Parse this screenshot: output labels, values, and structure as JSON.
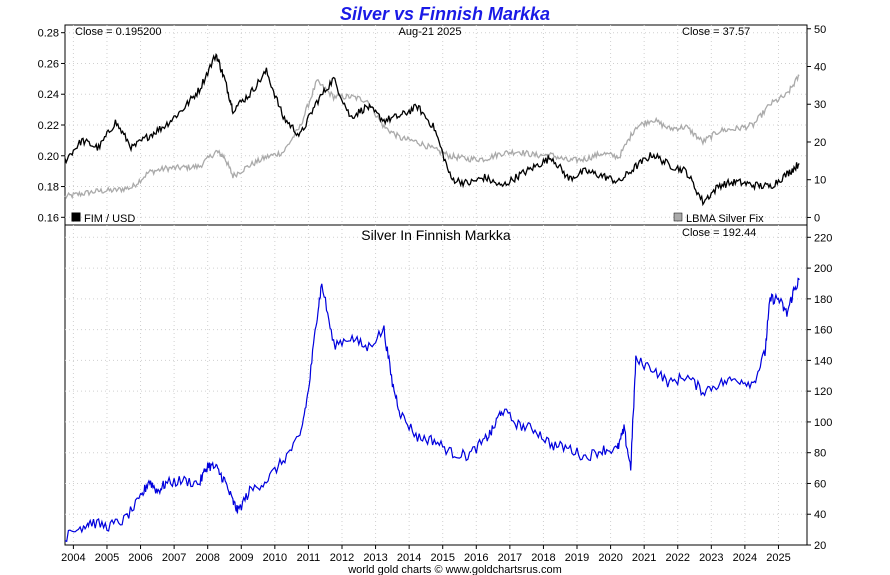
{
  "chart_data": [
    {
      "type": "line",
      "title": "Silver vs Finnish Markka",
      "date_label": "Aug-21  2025",
      "left_close_label": "Close = 0.195200",
      "right_close_label": "Close = 37.57",
      "left_axis": {
        "ylim": [
          0.155,
          0.285
        ],
        "ticks": [
          0.16,
          0.18,
          0.2,
          0.22,
          0.24,
          0.26,
          0.28
        ],
        "tick_labels": [
          "0.16",
          "0.18",
          "0.20",
          "0.22",
          "0.24",
          "0.26",
          "0.28"
        ]
      },
      "right_axis": {
        "ylim": [
          -2,
          51
        ],
        "ticks": [
          0,
          10,
          20,
          30,
          40,
          50
        ],
        "tick_labels": [
          "0",
          "10",
          "20",
          "30",
          "40",
          "50"
        ]
      },
      "x": [
        2003.75,
        2004.25,
        2004.75,
        2005.25,
        2005.75,
        2006.25,
        2006.75,
        2007.25,
        2007.75,
        2008.25,
        2008.5,
        2008.75,
        2009.25,
        2009.75,
        2010.25,
        2010.75,
        2011.25,
        2011.75,
        2012.25,
        2012.75,
        2013.25,
        2013.75,
        2014.25,
        2014.75,
        2015.25,
        2015.75,
        2016.25,
        2016.75,
        2017.25,
        2017.75,
        2018.25,
        2018.75,
        2019.25,
        2019.75,
        2020.25,
        2020.75,
        2021.25,
        2021.75,
        2022.25,
        2022.75,
        2023.25,
        2023.75,
        2024.25,
        2024.75,
        2025.25,
        2025.62
      ],
      "series": [
        {
          "name": "FIM / USD",
          "axis": "left",
          "color": "#000000",
          "values": [
            0.197,
            0.21,
            0.205,
            0.222,
            0.205,
            0.213,
            0.22,
            0.23,
            0.243,
            0.266,
            0.25,
            0.23,
            0.24,
            0.255,
            0.225,
            0.213,
            0.235,
            0.25,
            0.225,
            0.232,
            0.223,
            0.226,
            0.232,
            0.218,
            0.185,
            0.182,
            0.186,
            0.18,
            0.187,
            0.193,
            0.199,
            0.185,
            0.19,
            0.187,
            0.183,
            0.193,
            0.201,
            0.194,
            0.19,
            0.17,
            0.181,
            0.183,
            0.181,
            0.18,
            0.188,
            0.195
          ]
        },
        {
          "name": "LBMA Silver Fix",
          "axis": "right",
          "color": "#aaaaaa",
          "values": [
            5.5,
            6.3,
            7.0,
            7.2,
            8.0,
            12.0,
            13.0,
            13.2,
            13.5,
            17.5,
            16.0,
            11.0,
            13.8,
            16.0,
            17.3,
            24.0,
            36.0,
            32.0,
            32.0,
            31.0,
            24.0,
            21.0,
            20.0,
            18.0,
            16.2,
            15.5,
            15.5,
            17.0,
            17.5,
            16.5,
            16.5,
            15.0,
            15.5,
            17.0,
            16.0,
            24.0,
            26.0,
            23.5,
            24.0,
            20.0,
            23.0,
            23.5,
            24.5,
            30.0,
            32.5,
            37.6
          ]
        }
      ],
      "legend": "bottom"
    },
    {
      "type": "line",
      "title": "Silver In Finnish Markka",
      "close_label": "Close = 192.44",
      "y_axis": {
        "ylim": [
          20,
          228
        ],
        "ticks": [
          20,
          40,
          60,
          80,
          100,
          120,
          140,
          160,
          180,
          200,
          220
        ],
        "tick_labels": [
          "20",
          "40",
          "60",
          "80",
          "100",
          "120",
          "140",
          "160",
          "180",
          "200",
          "220"
        ]
      },
      "x": [
        2003.75,
        2004.25,
        2004.5,
        2005.0,
        2005.5,
        2006.0,
        2006.25,
        2006.5,
        2006.75,
        2007.25,
        2007.75,
        2008.0,
        2008.25,
        2008.5,
        2008.75,
        2008.9,
        2009.25,
        2009.75,
        2010.25,
        2010.75,
        2011.0,
        2011.25,
        2011.4,
        2011.75,
        2012.25,
        2012.75,
        2013.25,
        2013.5,
        2013.75,
        2014.25,
        2014.75,
        2015.25,
        2015.75,
        2016.25,
        2016.5,
        2016.75,
        2017.25,
        2017.75,
        2018.25,
        2018.75,
        2019.25,
        2019.75,
        2020.2,
        2020.4,
        2020.6,
        2020.75,
        2021.25,
        2021.75,
        2022.25,
        2022.75,
        2023.25,
        2023.75,
        2024.25,
        2024.6,
        2024.75,
        2025.0,
        2025.25,
        2025.45,
        2025.62
      ],
      "series": [
        {
          "name": "",
          "color": "#0000dd",
          "values": [
            25,
            32,
            35,
            32,
            36,
            50,
            62,
            55,
            60,
            62,
            60,
            72,
            70,
            62,
            48,
            42,
            55,
            62,
            75,
            90,
            120,
            168,
            190,
            150,
            155,
            148,
            160,
            125,
            105,
            90,
            88,
            80,
            78,
            88,
            95,
            108,
            98,
            95,
            85,
            83,
            77,
            82,
            82,
            95,
            70,
            140,
            135,
            125,
            130,
            120,
            125,
            128,
            125,
            145,
            180,
            180,
            170,
            185,
            192.4
          ]
        }
      ]
    }
  ],
  "x_axis": {
    "xlim": [
      2003.75,
      2025.85
    ],
    "tick_labels": [
      "2004",
      "2005",
      "2006",
      "2007",
      "2008",
      "2009",
      "2010",
      "2011",
      "2012",
      "2013",
      "2014",
      "2015",
      "2016",
      "2017",
      "2018",
      "2019",
      "2020",
      "2021",
      "2022",
      "2023",
      "2024",
      "2025"
    ]
  },
  "footer": "world gold charts © www.goldchartsrus.com",
  "colors": {
    "title": "#1a1ae6",
    "fim": "#000000",
    "silver_fix": "#aaaaaa",
    "silver_fim": "#0000dd",
    "grid": "#d0d0d0"
  }
}
